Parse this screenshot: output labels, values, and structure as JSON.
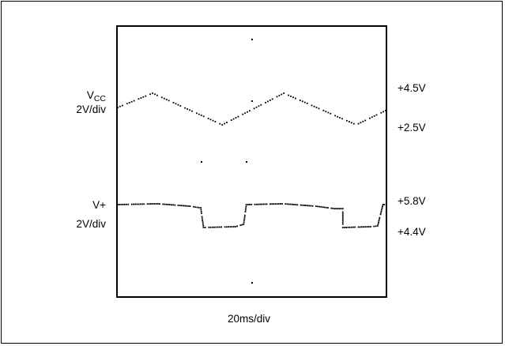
{
  "chart_data": {
    "type": "line",
    "xlabel": "20ms/div",
    "channels": [
      {
        "label_main": "V",
        "label_sub": "CC",
        "scale": "2V/div",
        "level_labels": [
          "+4.5V",
          "+2.5V"
        ],
        "shape": "triangle",
        "levels": [
          4.5,
          2.5
        ],
        "points": [
          {
            "x": 0,
            "y": 3.6
          },
          {
            "x": 13,
            "y": 4.5
          },
          {
            "x": 39,
            "y": 2.5
          },
          {
            "x": 62,
            "y": 4.5
          },
          {
            "x": 89,
            "y": 2.5
          },
          {
            "x": 100,
            "y": 3.4
          }
        ]
      },
      {
        "label_main": "V+",
        "label_sub": "",
        "scale": "2V/div",
        "level_labels": [
          "+5.8V",
          "+4.4V"
        ],
        "shape": "square",
        "levels": [
          5.8,
          4.4
        ],
        "points": [
          {
            "x": 0,
            "y": 5.8
          },
          {
            "x": 15,
            "y": 5.85
          },
          {
            "x": 27,
            "y": 5.7
          },
          {
            "x": 31,
            "y": 5.6
          },
          {
            "x": 32,
            "y": 4.4
          },
          {
            "x": 44,
            "y": 4.45
          },
          {
            "x": 47,
            "y": 4.6
          },
          {
            "x": 48,
            "y": 5.8
          },
          {
            "x": 62,
            "y": 5.85
          },
          {
            "x": 74,
            "y": 5.7
          },
          {
            "x": 81,
            "y": 5.55
          },
          {
            "x": 84,
            "y": 5.55
          },
          {
            "x": 84,
            "y": 4.4
          },
          {
            "x": 95,
            "y": 4.45
          },
          {
            "x": 97,
            "y": 4.5
          },
          {
            "x": 99,
            "y": 5.8
          },
          {
            "x": 100,
            "y": 5.8
          }
        ]
      }
    ]
  }
}
